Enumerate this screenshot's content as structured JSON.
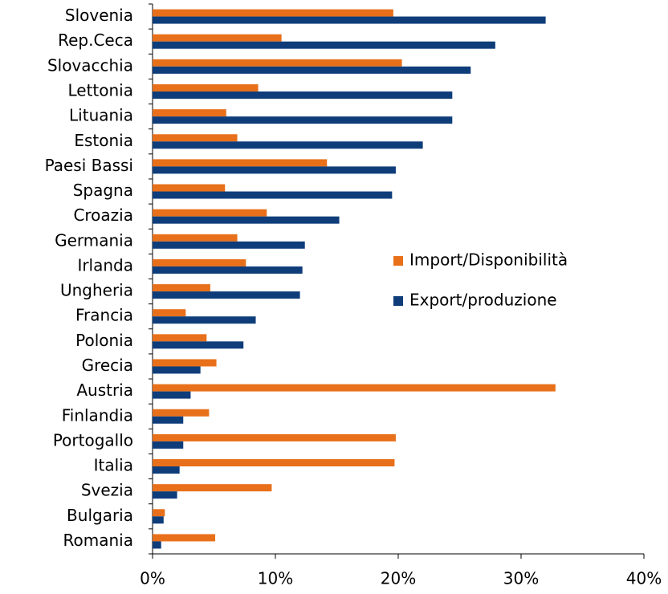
{
  "chart_data": {
    "type": "barh",
    "categories": [
      "Slovenia",
      "Rep.Ceca",
      "Slovacchia",
      "Lettonia",
      "Lituania",
      "Estonia",
      "Paesi Bassi",
      "Spagna",
      "Croazia",
      "Germania",
      "Irlanda",
      "Ungheria",
      "Francia",
      "Polonia",
      "Grecia",
      "Austria",
      "Finlandia",
      "Portogallo",
      "Italia",
      "Svezia",
      "Bulgaria",
      "Romania"
    ],
    "series": [
      {
        "name": "Import/Disponibilità",
        "color": "#e8701a",
        "values": [
          19.6,
          10.5,
          20.3,
          8.6,
          6.0,
          6.9,
          14.2,
          5.9,
          9.3,
          6.9,
          7.6,
          4.7,
          2.7,
          4.4,
          5.2,
          32.8,
          4.6,
          19.8,
          19.7,
          9.7,
          1.0,
          5.1
        ]
      },
      {
        "name": "Export/produzione",
        "color": "#0e3d7a",
        "values": [
          32.0,
          27.9,
          25.9,
          24.4,
          24.4,
          22.0,
          19.8,
          19.5,
          15.2,
          12.4,
          12.2,
          12.0,
          8.4,
          7.4,
          3.9,
          3.1,
          2.5,
          2.5,
          2.2,
          2.0,
          0.9,
          0.7
        ]
      }
    ],
    "xlim": [
      0,
      40
    ],
    "xticks": [
      {
        "value": 0,
        "label": "0%"
      },
      {
        "value": 10,
        "label": "10%"
      },
      {
        "value": 20,
        "label": "20%"
      },
      {
        "value": 30,
        "label": "30%"
      },
      {
        "value": 40,
        "label": "40%"
      }
    ],
    "grid": false,
    "legend": "right"
  }
}
